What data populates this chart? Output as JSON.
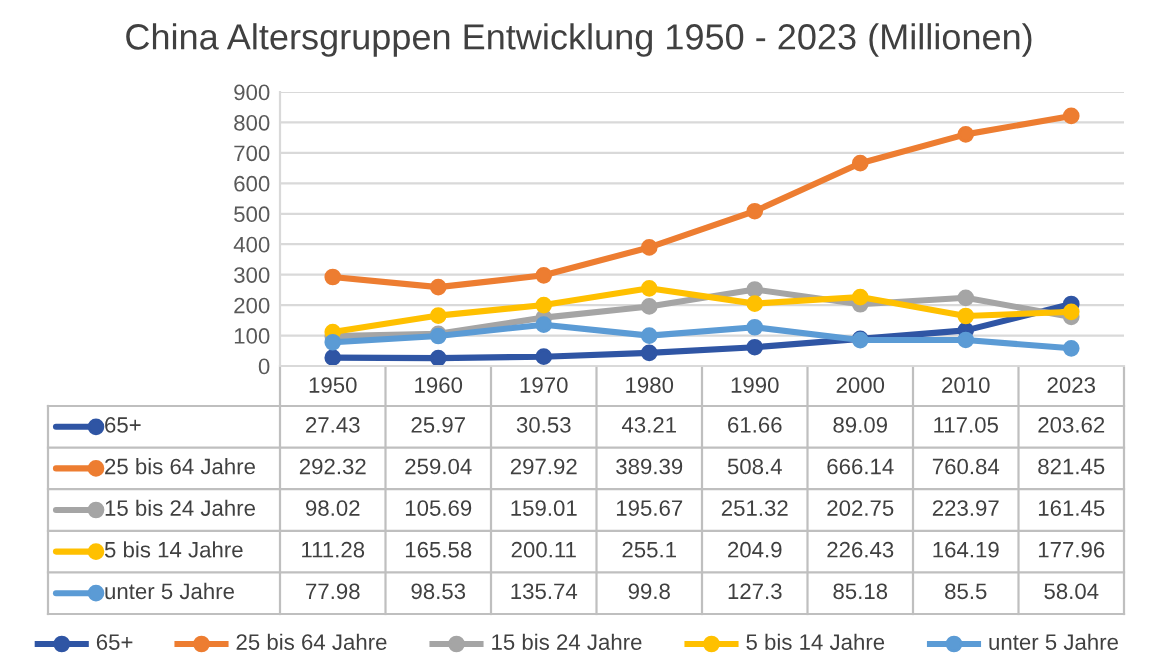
{
  "chart_data": {
    "type": "line",
    "title": "China Altersgruppen Entwicklung 1950 - 2023 (Millionen)",
    "categories": [
      "1950",
      "1960",
      "1970",
      "1980",
      "1990",
      "2000",
      "2010",
      "2023"
    ],
    "series": [
      {
        "name": "65+",
        "color": "#2f55a4",
        "values": [
          27.43,
          25.97,
          30.53,
          43.21,
          61.66,
          89.09,
          117.05,
          203.62
        ]
      },
      {
        "name": "25 bis 64 Jahre",
        "color": "#ed7d31",
        "values": [
          292.32,
          259.04,
          297.92,
          389.39,
          508.4,
          666.14,
          760.84,
          821.45
        ]
      },
      {
        "name": "15 bis 24 Jahre",
        "color": "#a5a5a5",
        "values": [
          98.02,
          105.69,
          159.01,
          195.67,
          251.32,
          202.75,
          223.97,
          161.45
        ]
      },
      {
        "name": "5 bis 14 Jahre",
        "color": "#ffc000",
        "values": [
          111.28,
          165.58,
          200.11,
          255.1,
          204.9,
          226.43,
          164.19,
          177.96
        ]
      },
      {
        "name": "unter 5 Jahre",
        "color": "#5b9bd5",
        "values": [
          77.98,
          98.53,
          135.74,
          99.8,
          127.3,
          85.18,
          85.5,
          58.04
        ]
      }
    ],
    "ylim": [
      0,
      900
    ],
    "yticks": [
      0,
      100,
      200,
      300,
      400,
      500,
      600,
      700,
      800,
      900
    ],
    "grid": "y",
    "legend": "bottom",
    "marker": "circle",
    "line_style": "solid",
    "data_labels": true
  }
}
